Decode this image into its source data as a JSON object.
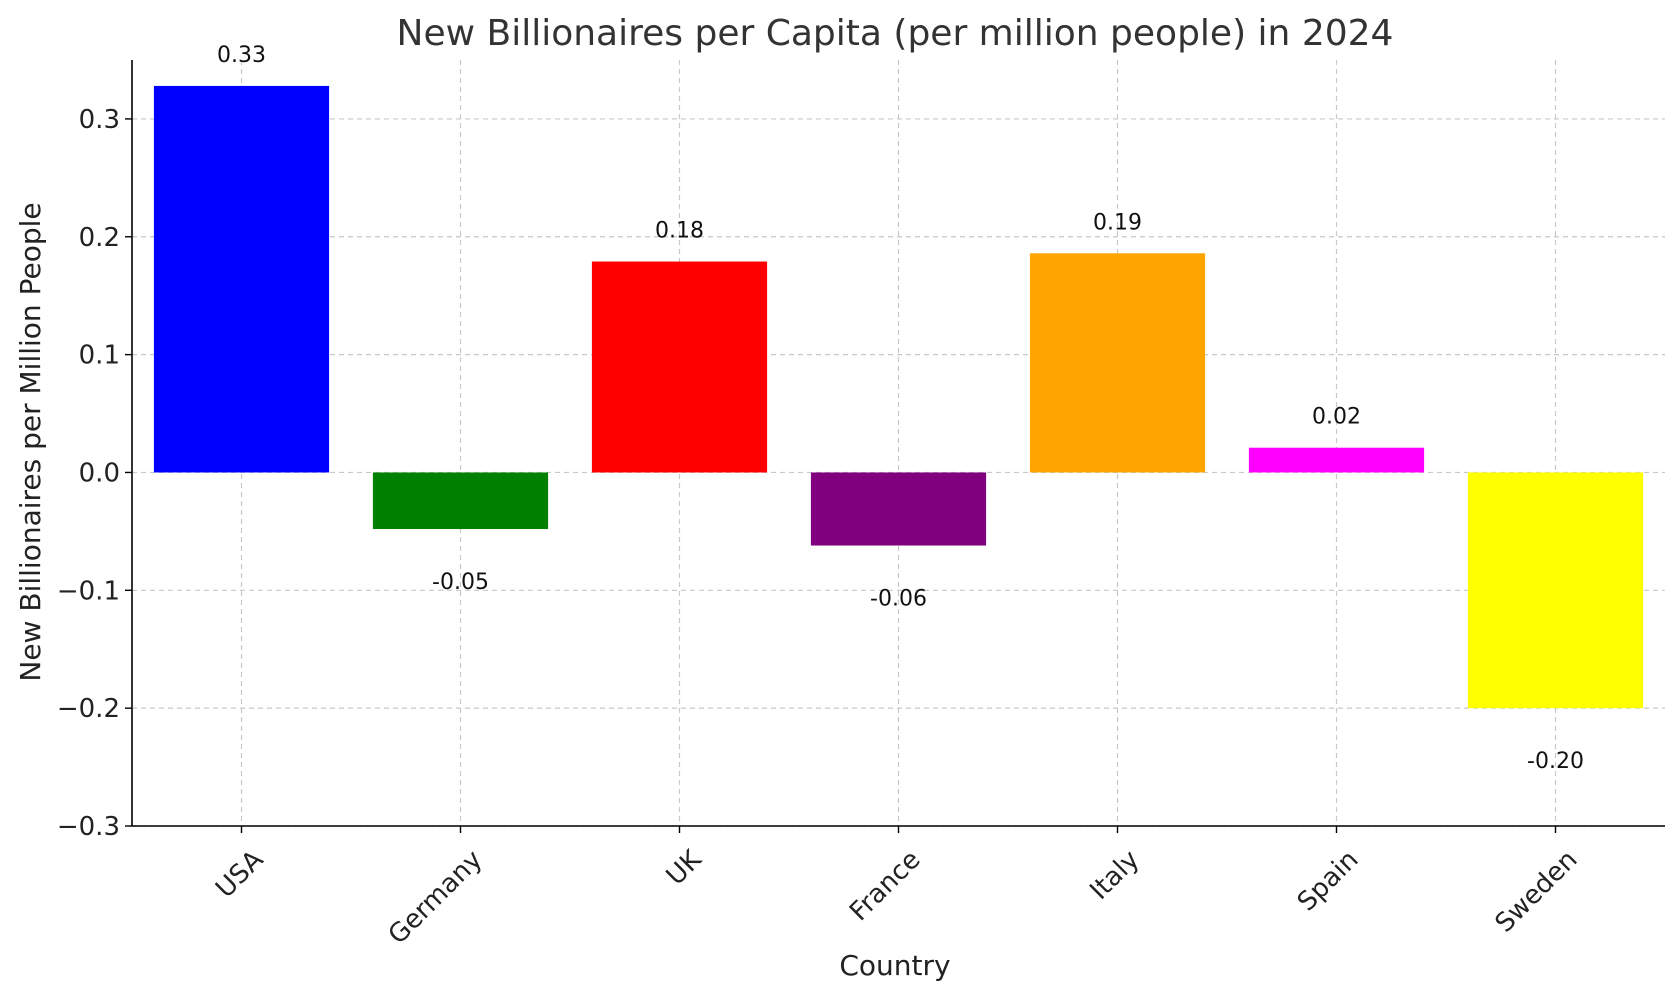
{
  "chart_data": {
    "type": "bar",
    "title": "New Billionaires per Capita (per million people) in 2024",
    "xlabel": "Country",
    "ylabel": "New Billionaires per Million People",
    "categories": [
      "USA",
      "Germany",
      "UK",
      "France",
      "Italy",
      "Spain",
      "Sweden"
    ],
    "values": [
      0.328,
      -0.048,
      0.179,
      -0.062,
      0.186,
      0.021,
      -0.2
    ],
    "value_labels": [
      "0.33",
      "-0.05",
      "0.18",
      "-0.06",
      "0.19",
      "0.02",
      "-0.20"
    ],
    "colors": [
      "#0000ff",
      "#008000",
      "#ff0000",
      "#800080",
      "#ffa500",
      "#ff00ff",
      "#ffff00"
    ],
    "ylim": [
      -0.3,
      0.35
    ],
    "yticks": [
      -0.3,
      -0.2,
      -0.1,
      0.0,
      0.1,
      0.2,
      0.3
    ],
    "ytick_labels": [
      "−0.3",
      "−0.2",
      "−0.1",
      "0.0",
      "0.1",
      "0.2",
      "0.3"
    ],
    "grid": true,
    "grid_style": "dashed",
    "xtick_rotation_deg": 45
  }
}
